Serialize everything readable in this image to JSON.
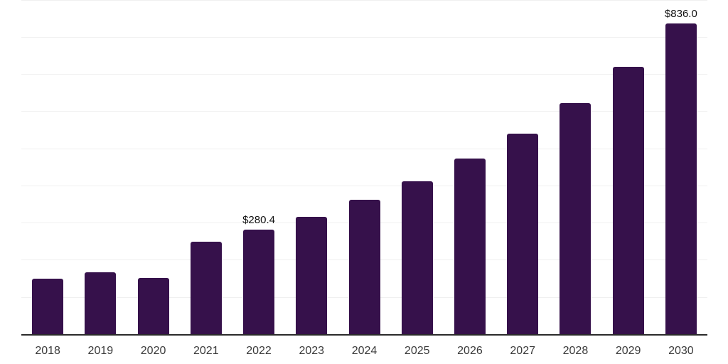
{
  "chart_data": {
    "type": "bar",
    "title": "",
    "xlabel": "",
    "ylabel": "",
    "categories": [
      "2018",
      "2019",
      "2020",
      "2021",
      "2022",
      "2023",
      "2024",
      "2025",
      "2026",
      "2027",
      "2028",
      "2029",
      "2030"
    ],
    "values": [
      149,
      167,
      151,
      248,
      280.4,
      315,
      361,
      412,
      473,
      540,
      621,
      719,
      836
    ],
    "data_labels": [
      null,
      null,
      null,
      null,
      "$280.4",
      null,
      null,
      null,
      null,
      null,
      null,
      null,
      "$836.0"
    ],
    "ylim": [
      0,
      900
    ],
    "gridline_step": 100,
    "grid": true,
    "legend_position": "none",
    "colors": {
      "bar": "#36114b",
      "axis_line": "#2b2b2b",
      "gridline": "#f0f0f0",
      "data_label": "#111111",
      "tick_label": "#3a3a3a",
      "background": "#ffffff"
    }
  }
}
